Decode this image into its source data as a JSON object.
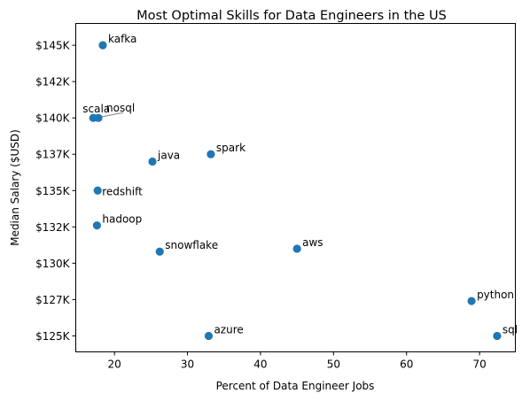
{
  "chart_data": {
    "type": "scatter",
    "title": "Most Optimal Skills for Data Engineers in the US",
    "xlabel": "Percent of Data Engineer Jobs",
    "ylabel": "Median Salary ($USD)",
    "xlim": [
      14.7,
      74.9
    ],
    "ylim": [
      123900,
      146500
    ],
    "x_ticks": [
      20,
      30,
      40,
      50,
      60,
      70
    ],
    "x_tick_labels": [
      "20",
      "30",
      "40",
      "50",
      "60",
      "70"
    ],
    "y_ticks": [
      125000,
      127500,
      130000,
      132500,
      135000,
      137500,
      140000,
      142500,
      145000
    ],
    "y_tick_labels": [
      "$125K",
      "$127K",
      "$130K",
      "$132K",
      "$135K",
      "$137K",
      "$140K",
      "$142K",
      "$145K"
    ],
    "grid": false,
    "legend": "none",
    "marker_color": "#1f77b4",
    "points": [
      {
        "label": "kafka",
        "x": 18.4,
        "y": 145000
      },
      {
        "label": "scala",
        "x": 17.1,
        "y": 140000
      },
      {
        "label": "nosql",
        "x": 17.8,
        "y": 140000
      },
      {
        "label": "java",
        "x": 25.2,
        "y": 137000
      },
      {
        "label": "spark",
        "x": 33.2,
        "y": 137500
      },
      {
        "label": "redshift",
        "x": 17.7,
        "y": 135000
      },
      {
        "label": "hadoop",
        "x": 17.6,
        "y": 132600
      },
      {
        "label": "snowflake",
        "x": 26.2,
        "y": 130800
      },
      {
        "label": "aws",
        "x": 45.0,
        "y": 131000
      },
      {
        "label": "python",
        "x": 68.9,
        "y": 127400
      },
      {
        "label": "azure",
        "x": 32.9,
        "y": 125000
      },
      {
        "label": "sql",
        "x": 72.4,
        "y": 125000
      }
    ]
  }
}
